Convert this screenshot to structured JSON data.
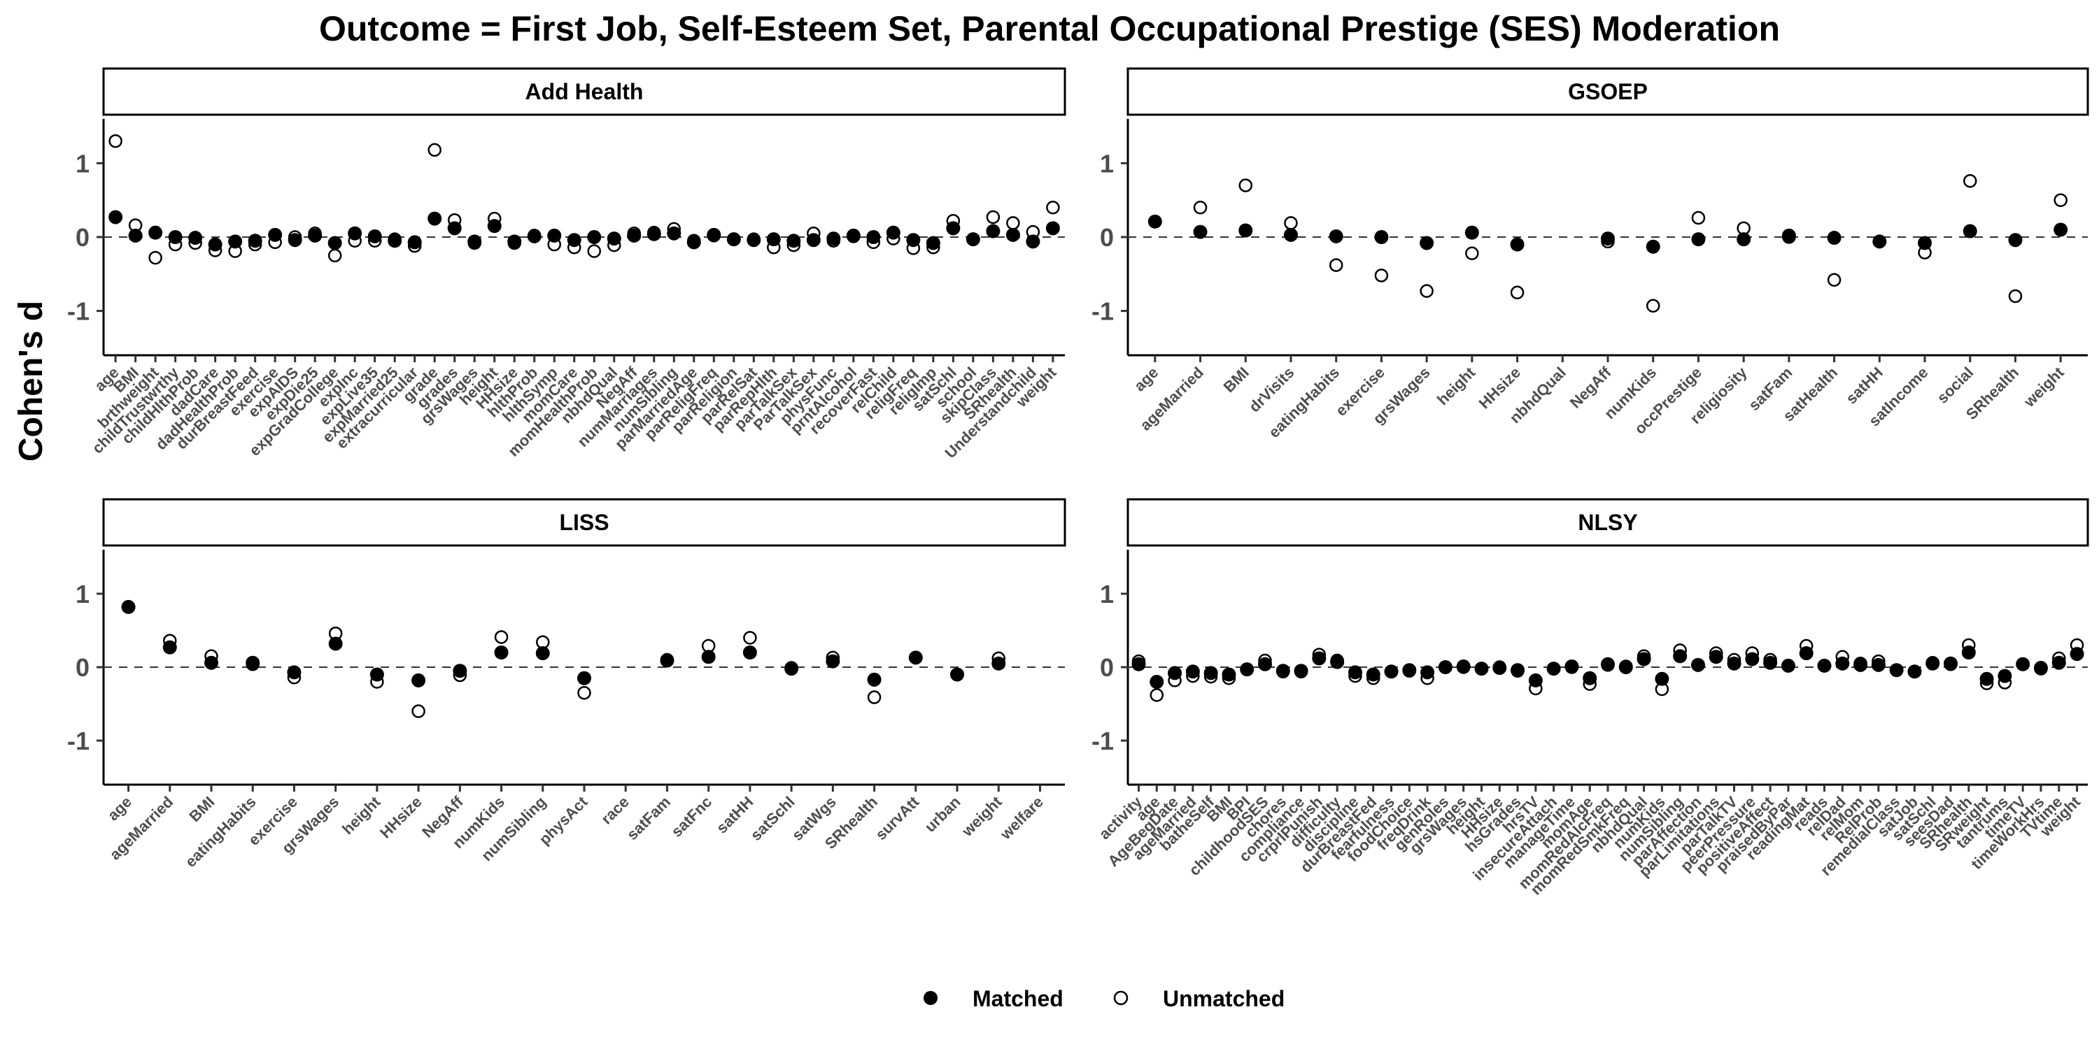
{
  "chart_data": {
    "type": "scatter",
    "title": "Outcome = First Job, Self-Esteem Set, Parental Occupational Prestige (SES) Moderation",
    "ylabel": "Cohen's d",
    "ylim": [
      -1.6,
      1.6
    ],
    "yticks": [
      -1,
      0,
      1
    ],
    "reference_line": 0,
    "legend": {
      "position": "bottom",
      "entries": [
        {
          "name": "Matched",
          "marker": "filled-circle"
        },
        {
          "name": "Unmatched",
          "marker": "open-circle"
        }
      ]
    },
    "colors": {
      "matched": "#000000",
      "unmatched": "#000000",
      "refline": "#333333"
    },
    "panels": [
      {
        "name": "Add Health",
        "categories": [
          "age",
          "BMI",
          "brthweight",
          "childTrustwrthy",
          "childHlthProb",
          "dadCare",
          "dadHealthProb",
          "durBreastFeed",
          "exercise",
          "expAIDS",
          "expDie25",
          "expGradCollege",
          "expInc",
          "expLive35",
          "expMarried25",
          "extracurricular",
          "grade",
          "grades",
          "grsWages",
          "height",
          "HHsize",
          "hlthProb",
          "hlthSymp",
          "momCare",
          "momHealthProb",
          "nbhdQual",
          "NegAff",
          "numMarriages",
          "numSibling",
          "parMarriedAge",
          "parReligFreq",
          "parReligion",
          "parRelSat",
          "parRepHlth",
          "parTalkSex",
          "ParTalkSex",
          "physFunc",
          "prntAlcohol",
          "recoverFast",
          "relChild",
          "religFreq",
          "religImp",
          "satSchl",
          "school",
          "skipClass",
          "SRhealth",
          "Understandchild",
          "weight"
        ],
        "matched": [
          0.27,
          0.02,
          0.06,
          0.0,
          -0.01,
          -0.1,
          -0.06,
          -0.05,
          0.03,
          -0.04,
          0.02,
          -0.08,
          0.05,
          0.01,
          -0.05,
          -0.07,
          0.25,
          0.12,
          -0.06,
          0.15,
          -0.06,
          0.01,
          0.02,
          -0.04,
          0.0,
          -0.02,
          0.02,
          0.04,
          0.05,
          -0.07,
          0.03,
          -0.03,
          -0.04,
          -0.03,
          -0.05,
          -0.04,
          -0.02,
          0.02,
          0.0,
          0.06,
          -0.04,
          -0.08,
          0.12,
          -0.03,
          0.08,
          0.03,
          -0.06,
          0.12
        ],
        "unmatched": [
          1.3,
          0.16,
          -0.28,
          -0.1,
          -0.08,
          -0.18,
          -0.19,
          -0.1,
          -0.07,
          0.0,
          0.05,
          -0.25,
          -0.05,
          -0.05,
          -0.03,
          -0.12,
          1.18,
          0.23,
          -0.08,
          0.25,
          -0.08,
          0.02,
          -0.1,
          -0.14,
          -0.19,
          -0.11,
          0.05,
          0.06,
          0.11,
          -0.05,
          0.02,
          -0.03,
          -0.03,
          -0.14,
          -0.11,
          0.05,
          -0.05,
          0.01,
          -0.07,
          -0.02,
          -0.15,
          -0.14,
          0.22,
          -0.03,
          0.27,
          0.19,
          0.07,
          0.4
        ]
      },
      {
        "name": "GSOEP",
        "categories": [
          "age",
          "ageMarried",
          "BMI",
          "drVisits",
          "eatingHabits",
          "exercise",
          "grsWages",
          "height",
          "HHsize",
          "nbhdQual",
          "NegAff",
          "numKids",
          "occPrestige",
          "religiosity",
          "satFam",
          "satHealth",
          "satHH",
          "satIncome",
          "social",
          "SRhealth",
          "weight"
        ],
        "matched": [
          0.21,
          0.07,
          0.09,
          0.03,
          0.01,
          0.0,
          -0.08,
          0.06,
          -0.1,
          null,
          -0.02,
          -0.13,
          -0.03,
          -0.03,
          0.02,
          -0.01,
          -0.06,
          -0.08,
          0.08,
          -0.04,
          0.1
        ],
        "unmatched": [
          null,
          0.4,
          0.7,
          0.19,
          -0.38,
          -0.52,
          -0.73,
          -0.22,
          -0.75,
          null,
          -0.06,
          -0.93,
          0.26,
          0.12,
          0.0,
          -0.58,
          null,
          -0.21,
          0.76,
          -0.8,
          0.5
        ]
      },
      {
        "name": "LISS",
        "categories": [
          "age",
          "ageMarried",
          "BMI",
          "eatingHabits",
          "exercise",
          "grsWages",
          "height",
          "HHsize",
          "NegAff",
          "numKids",
          "numSibling",
          "physAct",
          "race",
          "satFam",
          "satFnc",
          "satHH",
          "satSchl",
          "satWgs",
          "SRhealth",
          "survAtt",
          "urban",
          "weight",
          "welfare"
        ],
        "matched": [
          0.82,
          0.27,
          0.06,
          0.06,
          -0.07,
          0.32,
          -0.1,
          -0.18,
          -0.05,
          0.2,
          0.19,
          -0.15,
          null,
          0.09,
          0.14,
          0.2,
          -0.02,
          0.08,
          -0.17,
          0.13,
          -0.1,
          0.05,
          null
        ],
        "unmatched": [
          0.82,
          0.36,
          0.15,
          0.04,
          -0.14,
          0.46,
          -0.2,
          -0.6,
          -0.11,
          0.41,
          0.34,
          -0.35,
          null,
          0.1,
          0.29,
          0.4,
          -0.01,
          0.13,
          -0.41,
          0.13,
          -0.1,
          0.12,
          null
        ]
      },
      {
        "name": "NLSY",
        "categories": [
          "activity",
          "age",
          "AgeBegDate",
          "ageMarried",
          "batheSelf",
          "BMI",
          "BPI",
          "childhoodSES",
          "chores",
          "compliance",
          "crprlPunish",
          "difficulty",
          "discipline",
          "durBreastFed",
          "fearfulness",
          "foodChoice",
          "freqDrink",
          "genRoles",
          "grsWages",
          "height",
          "HHsize",
          "hsGrades",
          "hrsTV",
          "insecureAttach",
          "manageTime",
          "momAge",
          "momRedAlcFreq",
          "momRedSmkFreq",
          "nbhdQual",
          "numKids",
          "numSibling",
          "parAffection",
          "parLimitations",
          "parTalkTV",
          "peerPressure",
          "positiveAffect",
          "praisedByPar",
          "readingMat",
          "reads",
          "relDad",
          "relMom",
          "RelProb",
          "remedialClass",
          "satJob",
          "satSchl",
          "seesDad",
          "SRhealth",
          "SRweight",
          "tantrums",
          "timeTV",
          "timeWorkHrs",
          "TVtime",
          "weight"
        ],
        "matched": [
          0.04,
          -0.2,
          -0.08,
          -0.06,
          -0.08,
          -0.1,
          -0.03,
          0.04,
          -0.05,
          -0.05,
          0.12,
          0.07,
          -0.07,
          -0.1,
          -0.06,
          -0.04,
          -0.07,
          0.0,
          0.01,
          -0.02,
          -0.01,
          -0.04,
          -0.18,
          -0.02,
          0.01,
          -0.15,
          0.04,
          0.0,
          0.11,
          -0.16,
          0.15,
          0.03,
          0.14,
          0.05,
          0.11,
          0.06,
          0.02,
          0.19,
          0.02,
          0.05,
          0.03,
          0.03,
          -0.04,
          -0.06,
          0.05,
          0.05,
          0.2,
          -0.16,
          -0.12,
          0.04,
          -0.01,
          0.06,
          0.18
        ],
        "unmatched": [
          0.08,
          -0.38,
          -0.18,
          -0.12,
          -0.13,
          -0.15,
          -0.03,
          0.09,
          -0.06,
          -0.06,
          0.17,
          0.09,
          -0.12,
          -0.15,
          -0.06,
          -0.05,
          -0.15,
          0.0,
          0.0,
          -0.02,
          0.0,
          -0.05,
          -0.29,
          -0.02,
          0.0,
          -0.23,
          0.03,
          0.01,
          0.15,
          -0.3,
          0.23,
          0.03,
          0.19,
          0.1,
          0.19,
          0.1,
          0.02,
          0.29,
          0.02,
          0.14,
          0.05,
          0.08,
          -0.04,
          -0.06,
          0.06,
          0.04,
          0.3,
          -0.22,
          -0.21,
          0.04,
          -0.02,
          0.12,
          0.3
        ]
      }
    ]
  }
}
